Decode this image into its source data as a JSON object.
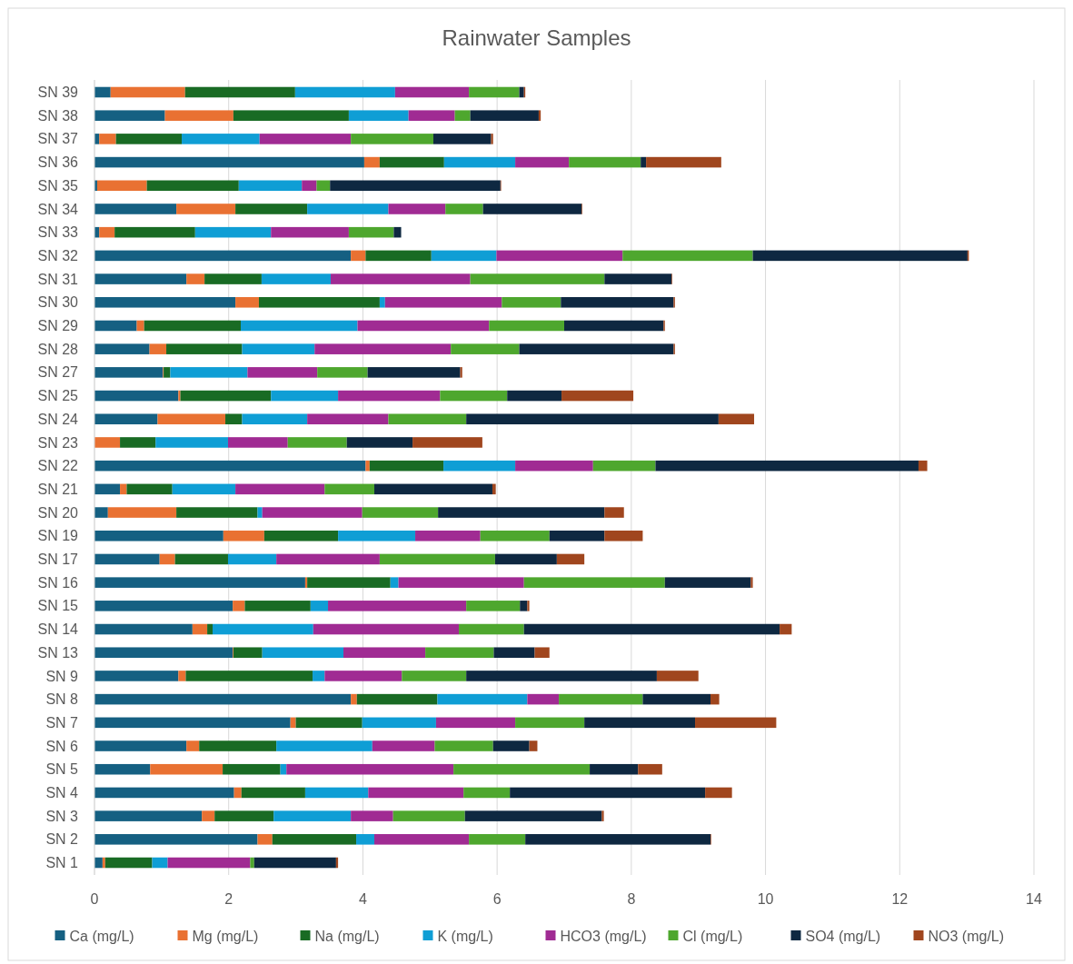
{
  "chart_data": {
    "type": "bar",
    "orientation": "horizontal",
    "stacked": true,
    "title": "Rainwater Samples",
    "categories": [
      "SN 39",
      "SN 38",
      "SN 37",
      "SN 36",
      "SN 35",
      "SN 34",
      "SN 33",
      "SN 32",
      "SN 31",
      "SN 30",
      "SN 29",
      "SN 28",
      "SN 27",
      "SN 25",
      "SN 24",
      "SN 23",
      "SN 22",
      "SN 21",
      "SN 20",
      "SN 19",
      "SN 17",
      "SN 16",
      "SN 15",
      "SN 14",
      "SN 13",
      "SN 9",
      "SN 8",
      "SN 7",
      "SN 6",
      "SN 5",
      "SN 4",
      "SN 3",
      "SN 2",
      "SN 1"
    ],
    "xlim": [
      0,
      14
    ],
    "xticks": [
      0,
      2,
      4,
      6,
      8,
      10,
      12,
      14
    ],
    "grid": "x",
    "legend": "bottom",
    "series": [
      {
        "name": "Ca (mg/L)",
        "color": "#156082",
        "values": [
          0.24,
          1.05,
          0.07,
          4.02,
          0.04,
          1.22,
          0.07,
          3.82,
          1.37,
          2.1,
          0.63,
          0.82,
          1.02,
          1.25,
          0.94,
          0,
          4.04,
          0.38,
          0.2,
          1.92,
          0.97,
          3.14,
          2.06,
          1.46,
          2.06,
          1.25,
          3.82,
          2.92,
          1.37,
          0.83,
          2.08,
          1.6,
          2.43,
          0.12
        ]
      },
      {
        "name": "Mg (mg/L)",
        "color": "#e97132",
        "values": [
          1.11,
          1.02,
          0.25,
          0.23,
          0.74,
          0.88,
          0.23,
          0.22,
          0.27,
          0.35,
          0.11,
          0.25,
          0.01,
          0.03,
          1.01,
          0.38,
          0.06,
          0.1,
          1.02,
          0.61,
          0.23,
          0.03,
          0.18,
          0.22,
          0.01,
          0.11,
          0.09,
          0.08,
          0.19,
          1.08,
          0.11,
          0.19,
          0.22,
          0.04
        ]
      },
      {
        "name": "Na (mg/L)",
        "color": "#196b24",
        "values": [
          1.64,
          1.72,
          0.98,
          0.96,
          1.37,
          1.07,
          1.2,
          0.98,
          0.85,
          1.8,
          1.44,
          1.13,
          0.1,
          1.35,
          0.25,
          0.53,
          1.1,
          0.68,
          1.21,
          1.1,
          0.79,
          1.24,
          0.98,
          0.08,
          0.43,
          1.89,
          1.2,
          0.99,
          1.15,
          0.86,
          0.95,
          0.88,
          1.25,
          0.7
        ]
      },
      {
        "name": "K (mg/L)",
        "color": "#0f9ed5",
        "values": [
          1.49,
          0.89,
          1.16,
          1.06,
          0.94,
          1.21,
          1.13,
          0.97,
          1.03,
          0.08,
          1.74,
          1.08,
          1.15,
          1.0,
          0.97,
          1.08,
          1.07,
          0.94,
          0.07,
          1.15,
          0.72,
          0.12,
          0.26,
          1.5,
          1.21,
          0.18,
          1.34,
          1.1,
          1.43,
          0.09,
          0.94,
          1.15,
          0.27,
          0.23
        ]
      },
      {
        "name": "HCO3 (mg/L)",
        "color": "#a02b93",
        "values": [
          1.1,
          0.69,
          1.36,
          0.8,
          0.22,
          0.85,
          1.16,
          1.88,
          2.08,
          1.74,
          1.96,
          2.03,
          1.04,
          1.52,
          1.21,
          0.89,
          1.16,
          1.33,
          1.49,
          0.97,
          1.54,
          1.87,
          2.06,
          2.17,
          1.22,
          1.15,
          0.47,
          1.18,
          0.93,
          2.49,
          1.42,
          0.63,
          1.41,
          1.23
        ]
      },
      {
        "name": "Cl (mg/L)",
        "color": "#4ea72e",
        "values": [
          0.75,
          0.23,
          1.23,
          1.07,
          0.2,
          0.56,
          0.67,
          1.94,
          2.0,
          0.88,
          1.12,
          1.02,
          0.75,
          1.0,
          1.16,
          0.88,
          0.93,
          0.74,
          1.13,
          1.03,
          1.72,
          2.1,
          0.8,
          0.97,
          1.02,
          0.96,
          1.25,
          1.03,
          0.87,
          2.03,
          0.69,
          1.07,
          0.84,
          0.06
        ]
      },
      {
        "name": "SO4 (mg/L)",
        "color": "#0e2841",
        "values": [
          0.07,
          1.02,
          0.86,
          0.08,
          2.54,
          1.47,
          0.11,
          3.2,
          1.0,
          1.68,
          1.48,
          2.3,
          1.38,
          0.81,
          3.76,
          0.98,
          3.92,
          1.76,
          2.48,
          0.82,
          0.92,
          1.28,
          0.11,
          3.81,
          0.61,
          2.84,
          1.01,
          1.65,
          0.54,
          0.72,
          2.91,
          2.04,
          2.76,
          1.22
        ]
      },
      {
        "name": "NO3 (mg/L)",
        "color": "#a0461e",
        "values": [
          0.02,
          0.03,
          0.03,
          1.12,
          0.01,
          0.01,
          null,
          0.02,
          0.01,
          0.02,
          0.02,
          0.02,
          0.03,
          1.07,
          0.53,
          1.04,
          0.13,
          0.05,
          0.29,
          0.57,
          0.41,
          0.03,
          0.03,
          0.18,
          0.22,
          0.62,
          0.13,
          1.21,
          0.12,
          0.36,
          0.4,
          0.03,
          0.01,
          0.03
        ]
      }
    ]
  }
}
